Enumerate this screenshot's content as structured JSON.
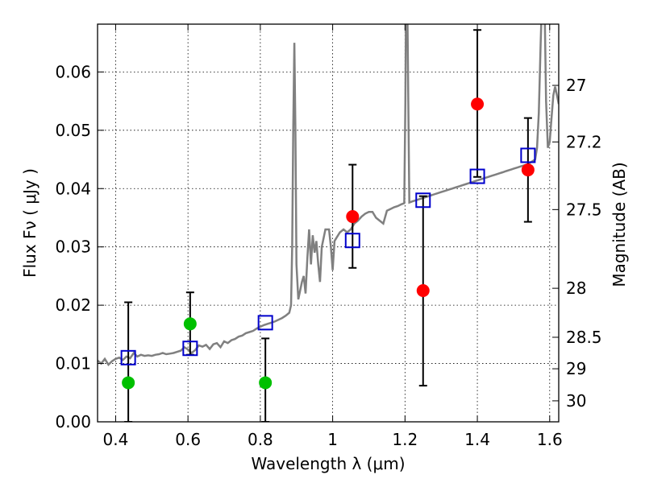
{
  "chart_data": {
    "type": "scatter",
    "xlabel": "Wavelength  λ (μm)",
    "ylabel": "Flux  Fν  ( μJy )",
    "ylabel_right": "Magnitude (AB)",
    "xlim": [
      0.35,
      1.625
    ],
    "ylim": [
      0.0,
      0.0682
    ],
    "grid": true,
    "x_ticks": [
      0.4,
      0.6,
      0.8,
      1.0,
      1.2,
      1.4,
      1.6
    ],
    "x_tick_labels": [
      "0.4",
      "0.6",
      "0.8",
      "1",
      "1.2",
      "1.4",
      "1.6"
    ],
    "y_ticks": [
      0.0,
      0.01,
      0.02,
      0.03,
      0.04,
      0.05,
      0.06
    ],
    "y_tick_labels": [
      "0.00",
      "0.01",
      "0.02",
      "0.03",
      "0.04",
      "0.05",
      "0.06"
    ],
    "right_ticks": [
      {
        "label": "27",
        "flux": 0.0577
      },
      {
        "label": "27.2",
        "flux": 0.048
      },
      {
        "label": "27.5",
        "flux": 0.0364
      },
      {
        "label": "28",
        "flux": 0.0229
      },
      {
        "label": "28.5",
        "flux": 0.0145
      },
      {
        "label": "29",
        "flux": 0.0091
      },
      {
        "label": "30",
        "flux": 0.0036
      }
    ],
    "sed_model": {
      "color": "#808080",
      "points": [
        [
          0.35,
          0.0105
        ],
        [
          0.36,
          0.01
        ],
        [
          0.37,
          0.0108
        ],
        [
          0.38,
          0.0098
        ],
        [
          0.39,
          0.0104
        ],
        [
          0.4,
          0.0108
        ],
        [
          0.41,
          0.011
        ],
        [
          0.42,
          0.0106
        ],
        [
          0.43,
          0.0112
        ],
        [
          0.44,
          0.0109
        ],
        [
          0.45,
          0.0118
        ],
        [
          0.46,
          0.0112
        ],
        [
          0.47,
          0.0115
        ],
        [
          0.48,
          0.0113
        ],
        [
          0.49,
          0.0114
        ],
        [
          0.5,
          0.0113
        ],
        [
          0.51,
          0.0115
        ],
        [
          0.52,
          0.0116
        ],
        [
          0.53,
          0.0118
        ],
        [
          0.54,
          0.0116
        ],
        [
          0.55,
          0.0117
        ],
        [
          0.56,
          0.0118
        ],
        [
          0.57,
          0.012
        ],
        [
          0.58,
          0.0122
        ],
        [
          0.59,
          0.0128
        ],
        [
          0.6,
          0.0124
        ],
        [
          0.61,
          0.0118
        ],
        [
          0.62,
          0.0123
        ],
        [
          0.63,
          0.0131
        ],
        [
          0.64,
          0.0129
        ],
        [
          0.65,
          0.0132
        ],
        [
          0.66,
          0.0125
        ],
        [
          0.67,
          0.0133
        ],
        [
          0.68,
          0.0135
        ],
        [
          0.69,
          0.0128
        ],
        [
          0.7,
          0.0138
        ],
        [
          0.71,
          0.0135
        ],
        [
          0.72,
          0.014
        ],
        [
          0.73,
          0.0142
        ],
        [
          0.74,
          0.0146
        ],
        [
          0.75,
          0.0148
        ],
        [
          0.76,
          0.0152
        ],
        [
          0.77,
          0.0154
        ],
        [
          0.78,
          0.0156
        ],
        [
          0.79,
          0.016
        ],
        [
          0.8,
          0.0163
        ],
        [
          0.81,
          0.0166
        ],
        [
          0.82,
          0.0168
        ],
        [
          0.83,
          0.017
        ],
        [
          0.84,
          0.0172
        ],
        [
          0.85,
          0.0175
        ],
        [
          0.86,
          0.0178
        ],
        [
          0.87,
          0.0182
        ],
        [
          0.88,
          0.0187
        ],
        [
          0.885,
          0.02
        ],
        [
          0.888,
          0.03
        ],
        [
          0.891,
          0.05
        ],
        [
          0.894,
          0.065
        ],
        [
          0.897,
          0.05
        ],
        [
          0.9,
          0.027
        ],
        [
          0.905,
          0.021
        ],
        [
          0.915,
          0.024
        ],
        [
          0.92,
          0.025
        ],
        [
          0.925,
          0.022
        ],
        [
          0.93,
          0.028
        ],
        [
          0.935,
          0.033
        ],
        [
          0.94,
          0.027
        ],
        [
          0.945,
          0.032
        ],
        [
          0.95,
          0.029
        ],
        [
          0.955,
          0.031
        ],
        [
          0.96,
          0.027
        ],
        [
          0.965,
          0.024
        ],
        [
          0.97,
          0.03
        ],
        [
          0.98,
          0.033
        ],
        [
          0.99,
          0.033
        ],
        [
          0.995,
          0.03
        ],
        [
          1.0,
          0.026
        ],
        [
          1.005,
          0.031
        ],
        [
          1.01,
          0.0315
        ],
        [
          1.02,
          0.0325
        ],
        [
          1.03,
          0.033
        ],
        [
          1.04,
          0.0325
        ],
        [
          1.05,
          0.033
        ],
        [
          1.06,
          0.034
        ],
        [
          1.07,
          0.0345
        ],
        [
          1.08,
          0.0352
        ],
        [
          1.09,
          0.0357
        ],
        [
          1.1,
          0.036
        ],
        [
          1.11,
          0.036
        ],
        [
          1.12,
          0.035
        ],
        [
          1.13,
          0.0345
        ],
        [
          1.14,
          0.034
        ],
        [
          1.15,
          0.0362
        ],
        [
          1.16,
          0.0365
        ],
        [
          1.17,
          0.0368
        ],
        [
          1.18,
          0.037
        ],
        [
          1.19,
          0.0373
        ],
        [
          1.198,
          0.0375
        ],
        [
          1.201,
          0.055
        ],
        [
          1.203,
          0.075
        ],
        [
          1.206,
          0.075
        ],
        [
          1.209,
          0.055
        ],
        [
          1.212,
          0.0376
        ],
        [
          1.22,
          0.0378
        ],
        [
          1.23,
          0.038
        ],
        [
          1.24,
          0.0382
        ],
        [
          1.25,
          0.0384
        ],
        [
          1.26,
          0.0386
        ],
        [
          1.27,
          0.0388
        ],
        [
          1.28,
          0.039
        ],
        [
          1.29,
          0.0392
        ],
        [
          1.3,
          0.0394
        ],
        [
          1.31,
          0.0396
        ],
        [
          1.32,
          0.0398
        ],
        [
          1.33,
          0.04
        ],
        [
          1.34,
          0.0402
        ],
        [
          1.35,
          0.0404
        ],
        [
          1.36,
          0.0406
        ],
        [
          1.37,
          0.0408
        ],
        [
          1.38,
          0.041
        ],
        [
          1.39,
          0.0412
        ],
        [
          1.4,
          0.0414
        ],
        [
          1.41,
          0.0416
        ],
        [
          1.42,
          0.0418
        ],
        [
          1.43,
          0.042
        ],
        [
          1.44,
          0.0422
        ],
        [
          1.45,
          0.0424
        ],
        [
          1.46,
          0.0426
        ],
        [
          1.47,
          0.0428
        ],
        [
          1.48,
          0.043
        ],
        [
          1.49,
          0.0432
        ],
        [
          1.5,
          0.0434
        ],
        [
          1.51,
          0.0436
        ],
        [
          1.52,
          0.0438
        ],
        [
          1.53,
          0.044
        ],
        [
          1.54,
          0.0442
        ],
        [
          1.55,
          0.0446
        ],
        [
          1.56,
          0.045
        ],
        [
          1.565,
          0.047
        ],
        [
          1.57,
          0.053
        ],
        [
          1.575,
          0.065
        ],
        [
          1.58,
          0.075
        ],
        [
          1.585,
          0.075
        ],
        [
          1.59,
          0.055
        ],
        [
          1.595,
          0.047
        ],
        [
          1.6,
          0.048
        ],
        [
          1.605,
          0.052
        ],
        [
          1.61,
          0.056
        ],
        [
          1.615,
          0.0575
        ],
        [
          1.62,
          0.056
        ],
        [
          1.625,
          0.0545
        ]
      ]
    },
    "model_photometry": {
      "marker": "open-square",
      "color": "#0000cc",
      "x": [
        0.435,
        0.606,
        0.814,
        1.055,
        1.25,
        1.4,
        1.54
      ],
      "y": [
        0.011,
        0.0126,
        0.017,
        0.0311,
        0.038,
        0.0421,
        0.0457
      ]
    },
    "observed_red": {
      "marker": "filled-circle",
      "color": "#ff0000",
      "x": [
        1.055,
        1.25,
        1.4,
        1.54
      ],
      "y": [
        0.0352,
        0.0225,
        0.0545,
        0.0432
      ],
      "yerr_low": [
        0.0264,
        0.0062,
        0.042,
        0.0343
      ],
      "yerr_high": [
        0.0441,
        0.0387,
        0.0672,
        0.0521
      ]
    },
    "observed_green": {
      "marker": "filled-circle",
      "color": "#00c000",
      "x": [
        0.435,
        0.606,
        0.814
      ],
      "y": [
        0.0067,
        0.0168,
        0.0067
      ],
      "yerr_low": [
        0.0,
        0.0115,
        0.0
      ],
      "yerr_high": [
        0.0205,
        0.0222,
        0.0143
      ]
    }
  }
}
